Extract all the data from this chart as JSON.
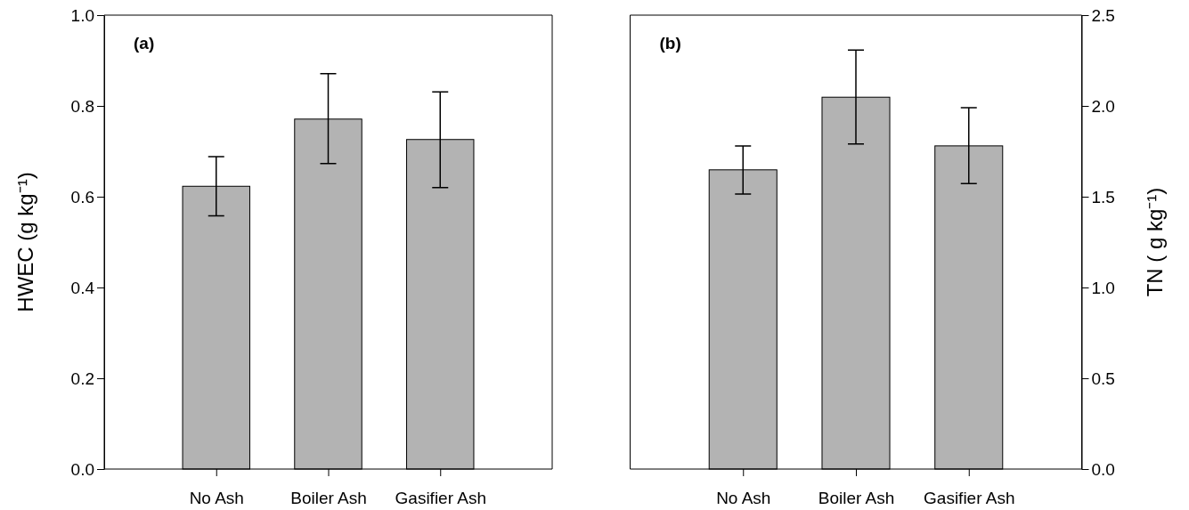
{
  "chart_data": [
    {
      "type": "bar",
      "title": "(a)",
      "ylabel": "HWEC (g kg⁻¹)",
      "categories": [
        "No Ash",
        "Boiler Ash",
        "Gasifier Ash"
      ],
      "series": [
        {
          "color": "#b3b3b3",
          "values": [
            0.623,
            0.771,
            0.726
          ],
          "errors": [
            [
              0.558,
              0.688
            ],
            [
              0.673,
              0.871
            ],
            [
              0.62,
              0.831
            ]
          ]
        }
      ],
      "ylim": [
        0,
        1.0
      ],
      "yticks": [
        {
          "value": 0,
          "label": "0.0"
        },
        0.2,
        0.4,
        0.6,
        0.8,
        {
          "value": 1,
          "label": "1.0"
        }
      ],
      "grid": false
    },
    {
      "type": "bar",
      "title": "(b)",
      "y2label": "TN ( g kg⁻¹)",
      "categories": [
        "No Ash",
        "Boiler Ash",
        "Gasifier Ash"
      ],
      "series": [
        {
          "color": "#b3b3b3",
          "axis": "y2",
          "values": [
            1.648,
            2.048,
            1.78
          ],
          "errors": [
            [
              1.515,
              1.78
            ],
            [
              1.79,
              2.307
            ],
            [
              1.572,
              1.99
            ]
          ]
        }
      ],
      "y2lim": [
        0,
        2.5
      ],
      "y2ticks": [
        {
          "value": 0,
          "label": "0.0"
        },
        0.5,
        {
          "value": 1,
          "label": "1.0"
        },
        1.5,
        {
          "value": 2,
          "label": "2.0"
        },
        2.5
      ],
      "grid": false
    }
  ]
}
